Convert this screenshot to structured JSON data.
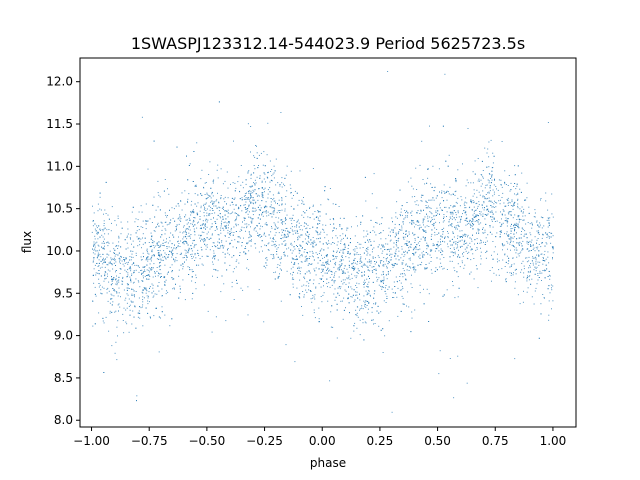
{
  "chart_data": {
    "type": "scatter",
    "title": "1SWASPJ123312.14-544023.9 Period 5625723.5s",
    "xlabel": "phase",
    "ylabel": "flux",
    "xlim": [
      -1.05,
      1.1
    ],
    "ylim": [
      7.92,
      12.28
    ],
    "xticks": [
      -1.0,
      -0.75,
      -0.5,
      -0.25,
      0.0,
      0.25,
      0.5,
      0.75,
      1.0
    ],
    "xtick_labels": [
      "−1.00",
      "−0.75",
      "−0.50",
      "−0.25",
      "0.00",
      "0.25",
      "0.50",
      "0.75",
      "1.00"
    ],
    "yticks": [
      8.0,
      8.5,
      9.0,
      9.5,
      10.0,
      10.5,
      11.0,
      11.5,
      12.0
    ],
    "ytick_labels": [
      "8.0",
      "8.5",
      "9.0",
      "9.5",
      "10.0",
      "10.5",
      "11.0",
      "11.5",
      "12.0"
    ],
    "grid": false,
    "marker_color": "#1f77b4",
    "series": [
      {
        "profile_phase": [
          0.0,
          0.05,
          0.1,
          0.15,
          0.2,
          0.25,
          0.3,
          0.35,
          0.4,
          0.45,
          0.5,
          0.55,
          0.6,
          0.65,
          0.7,
          0.75,
          0.8,
          0.85,
          0.9,
          0.95,
          1.0
        ],
        "profile_flux": [
          10.0,
          9.9,
          9.75,
          9.7,
          9.75,
          9.85,
          9.95,
          10.05,
          10.15,
          10.25,
          10.3,
          10.25,
          10.2,
          10.35,
          10.55,
          10.45,
          10.3,
          10.2,
          10.05,
          9.95,
          10.0
        ],
        "scatter_std": 0.32,
        "x_range": [
          -1.0,
          1.0
        ]
      }
    ]
  }
}
